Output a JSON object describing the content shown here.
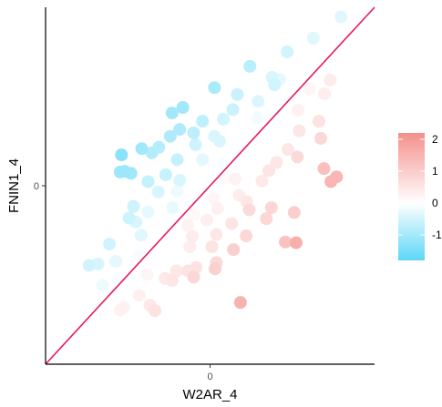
{
  "chart_data": {
    "type": "scatter",
    "xlabel": "W2AR_4",
    "ylabel": "FNIN1_4",
    "xlim": [
      -2.6,
      2.6
    ],
    "ylim": [
      -2.6,
      2.6
    ],
    "x_ticks": [
      {
        "value": 0,
        "label": "0"
      }
    ],
    "y_ticks": [
      {
        "value": 0,
        "label": "0"
      }
    ],
    "reference_line": {
      "type": "identity",
      "slope": 1,
      "intercept": 0,
      "color": "#e8195f"
    },
    "color_scale": {
      "low_color": "#5dd7f7",
      "mid_color": "#ffffff",
      "high_color": "#f4908c",
      "min": -1.8,
      "max": 2.2,
      "ticks": [
        2,
        1,
        0,
        -1
      ],
      "tick_labels": [
        "2",
        "1",
        "0",
        "-1"
      ],
      "legend_placement": "right"
    },
    "grid": false,
    "point_radius_note": "large circles",
    "points": [
      [
        2.07,
        2.46,
        -0.34
      ],
      [
        1.63,
        2.15,
        -0.36
      ],
      [
        1.22,
        1.95,
        -0.51
      ],
      [
        0.63,
        1.74,
        -0.78
      ],
      [
        0.98,
        1.58,
        -0.42
      ],
      [
        1.1,
        1.55,
        -0.3
      ],
      [
        1.02,
        1.47,
        -0.5
      ],
      [
        0.07,
        1.43,
        -0.96
      ],
      [
        0.43,
        1.33,
        -0.6
      ],
      [
        -0.43,
        1.14,
        -1.05
      ],
      [
        -0.6,
        1.06,
        -1.03
      ],
      [
        -0.48,
        0.82,
        -0.89
      ],
      [
        -1.4,
        0.45,
        -1.31
      ],
      [
        -1.42,
        0.2,
        -1.1
      ],
      [
        -1.35,
        0.21,
        -1.08
      ],
      [
        -0.92,
        0.48,
        -0.85
      ],
      [
        -0.52,
        0.38,
        -0.63
      ],
      [
        -0.23,
        0.6,
        -0.55
      ],
      [
        0.21,
        0.97,
        -0.5
      ],
      [
        -0.12,
        0.38,
        -0.3
      ],
      [
        -0.98,
        0.06,
        -0.64
      ],
      [
        -0.82,
        -0.09,
        -0.45
      ],
      [
        -0.59,
        -0.32,
        -0.25
      ],
      [
        -1.28,
        -0.47,
        -0.56
      ],
      [
        -1.09,
        -0.72,
        -0.36
      ],
      [
        -1.59,
        -0.85,
        -0.52
      ],
      [
        -1.77,
        -1.14,
        -0.44
      ],
      [
        -1.91,
        -1.16,
        -0.52
      ],
      [
        -1.49,
        -1.1,
        -0.3
      ],
      [
        -1.7,
        -1.45,
        -0.19
      ],
      [
        -1.45,
        -1.35,
        -0.08
      ],
      [
        -1.54,
        -1.56,
        0.04
      ],
      [
        -1.12,
        -1.6,
        0.3
      ],
      [
        -0.95,
        -1.74,
        0.45
      ],
      [
        -0.87,
        -1.82,
        0.58
      ],
      [
        -1.42,
        -1.81,
        0.28
      ],
      [
        -1.36,
        -1.77,
        0.24
      ],
      [
        -0.53,
        -1.24,
        0.45
      ],
      [
        -0.35,
        -1.24,
        0.54
      ],
      [
        -0.22,
        -1.19,
        0.58
      ],
      [
        0.03,
        -0.89,
        0.54
      ],
      [
        0.1,
        -1.12,
        0.75
      ],
      [
        -0.32,
        -0.89,
        0.35
      ],
      [
        0.34,
        -0.55,
        0.54
      ],
      [
        0.57,
        -0.73,
        0.79
      ],
      [
        0.89,
        -0.48,
        0.8
      ],
      [
        0.58,
        -0.23,
        0.47
      ],
      [
        0.97,
        -0.32,
        0.8
      ],
      [
        1.19,
        -0.82,
        1.22
      ],
      [
        1.33,
        -0.39,
        0.98
      ],
      [
        0.4,
        0.1,
        0.23
      ],
      [
        0.82,
        0.07,
        0.44
      ],
      [
        1.05,
        0.34,
        0.5
      ],
      [
        1.23,
        0.53,
        0.49
      ],
      [
        1.41,
        0.8,
        0.5
      ],
      [
        1.38,
        0.42,
        0.71
      ],
      [
        1.75,
        0.69,
        0.77
      ],
      [
        1.72,
        0.94,
        0.57
      ],
      [
        1.81,
        1.34,
        0.35
      ],
      [
        1.57,
        1.41,
        0.2
      ],
      [
        1.2,
        1.24,
        0.02
      ],
      [
        0.75,
        0.99,
        -0.14
      ],
      [
        0.5,
        0.48,
        0.01
      ],
      [
        0.23,
        0.1,
        0.09
      ],
      [
        0.05,
        -0.18,
        0.17
      ],
      [
        -0.25,
        -0.42,
        0.12
      ],
      [
        -0.05,
        -0.5,
        0.32
      ],
      [
        0.12,
        -0.33,
        0.3
      ],
      [
        0.62,
        -0.35,
        0.71
      ],
      [
        0.93,
        0.22,
        0.51
      ],
      [
        1.39,
        1.1,
        0.26
      ],
      [
        1.9,
        1.54,
        0.37
      ],
      [
        1.8,
        0.25,
        1.25
      ],
      [
        1.91,
        0.06,
        1.46
      ],
      [
        2.0,
        0.13,
        1.42
      ],
      [
        1.36,
        -0.83,
        1.59
      ],
      [
        0.37,
        -0.93,
        0.93
      ],
      [
        0.48,
        -1.7,
        1.5
      ],
      [
        0.08,
        -1.21,
        0.91
      ],
      [
        -0.26,
        -1.33,
        0.77
      ],
      [
        -0.6,
        -1.38,
        0.5
      ],
      [
        -0.35,
        -0.58,
        0.25
      ],
      [
        -0.67,
        -0.45,
        0.0
      ],
      [
        -0.52,
        -0.08,
        -0.2
      ],
      [
        -0.98,
        -0.38,
        -0.28
      ],
      [
        -0.48,
        0.08,
        -0.42
      ],
      [
        -0.81,
        0.56,
        -0.83
      ],
      [
        -0.26,
        0.77,
        -0.75
      ],
      [
        0.36,
        1.11,
        -0.59
      ],
      [
        0.76,
        1.23,
        -0.4
      ],
      [
        0.15,
        0.65,
        -0.41
      ],
      [
        -0.12,
        0.94,
        -0.72
      ],
      [
        -0.7,
        0.16,
        -0.62
      ],
      [
        -1.21,
        -0.3,
        -0.55
      ],
      [
        -1.17,
        -0.53,
        -0.42
      ],
      [
        -1.12,
        -1.0,
        -0.09
      ],
      [
        -0.77,
        -0.77,
        0.0
      ],
      [
        -0.99,
        -1.29,
        0.19
      ],
      [
        -0.71,
        -1.35,
        0.43
      ],
      [
        -0.28,
        -0.74,
        0.38
      ],
      [
        0.1,
        -0.71,
        0.48
      ],
      [
        0.46,
        -0.14,
        0.38
      ],
      [
        0.2,
        0.32,
        -0.08
      ],
      [
        0.07,
        0.72,
        -0.42
      ],
      [
        -0.63,
        0.72,
        -0.88
      ],
      [
        -1.08,
        0.54,
        -1.03
      ],
      [
        -1.25,
        0.18,
        -1.07
      ]
    ]
  }
}
